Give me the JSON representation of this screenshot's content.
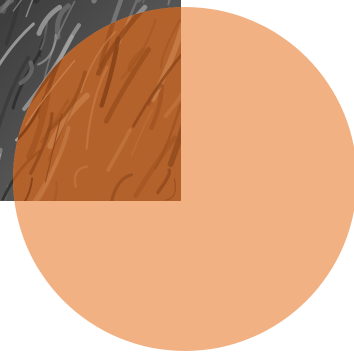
{
  "graphic": {
    "circle_color": "#f2b183",
    "overlay_tint_color": "#c26128",
    "photo_texture": "grey-rock-texture",
    "description_shapes": [
      "orange-circle",
      "photo-square"
    ]
  }
}
